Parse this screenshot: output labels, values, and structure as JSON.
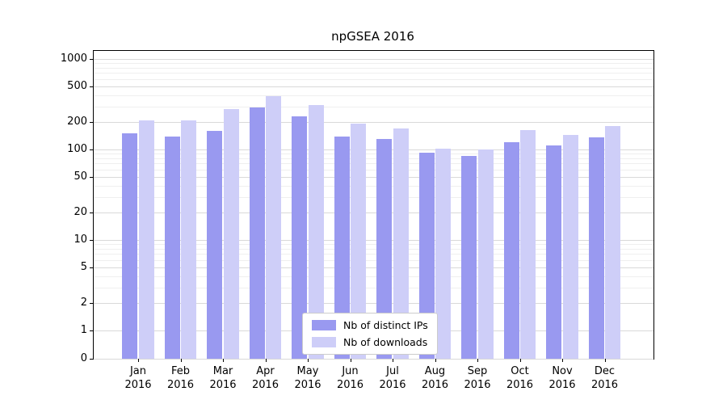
{
  "chart_data": {
    "type": "bar",
    "title": "npGSEA 2016",
    "scale": "log",
    "grid": true,
    "legend_position": "lower center",
    "year": "2016",
    "categories": [
      "Jan",
      "Feb",
      "Mar",
      "Apr",
      "May",
      "Jun",
      "Jul",
      "Aug",
      "Sep",
      "Oct",
      "Nov",
      "Dec"
    ],
    "yticks": [
      0,
      1,
      2,
      5,
      10,
      20,
      50,
      100,
      200,
      500,
      1000
    ],
    "series": [
      {
        "name": "Nb of distinct IPs",
        "color": "#9999f0",
        "values": [
          150,
          140,
          160,
          290,
          230,
          140,
          130,
          92,
          85,
          120,
          110,
          135
        ]
      },
      {
        "name": "Nb of downloads",
        "color": "#cecef8",
        "values": [
          210,
          210,
          280,
          390,
          310,
          195,
          170,
          103,
          100,
          165,
          145,
          180
        ]
      }
    ]
  }
}
